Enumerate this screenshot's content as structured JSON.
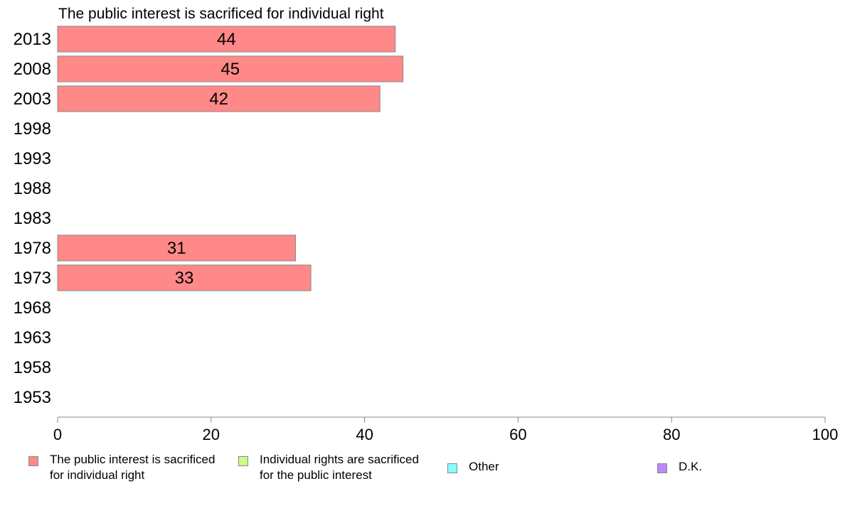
{
  "chart_data": {
    "type": "bar",
    "orientation": "horizontal",
    "title": "The public interest is sacrificed for individual right",
    "categories": [
      "2013",
      "2008",
      "2003",
      "1998",
      "1993",
      "1988",
      "1983",
      "1978",
      "1973",
      "1968",
      "1963",
      "1958",
      "1953"
    ],
    "series": [
      {
        "name": "The public interest is sacrificed for individual right",
        "color": "#ff8888",
        "values": [
          44,
          45,
          42,
          null,
          null,
          null,
          null,
          31,
          33,
          null,
          null,
          null,
          null
        ]
      }
    ],
    "xlim": [
      0,
      100
    ],
    "x_ticks": [
      0,
      20,
      40,
      60,
      80,
      100
    ],
    "grid": false,
    "legend_position": "bottom"
  },
  "legend": {
    "items": [
      {
        "label": "The public interest is sacrificed\nfor individual right",
        "color": "#ff8888"
      },
      {
        "label": "Individual rights are sacrificed\nfor the public interest",
        "color": "#ccff88"
      },
      {
        "label": "Other",
        "color": "#88ffff"
      },
      {
        "label": "D.K.",
        "color": "#bb88ff"
      }
    ]
  }
}
